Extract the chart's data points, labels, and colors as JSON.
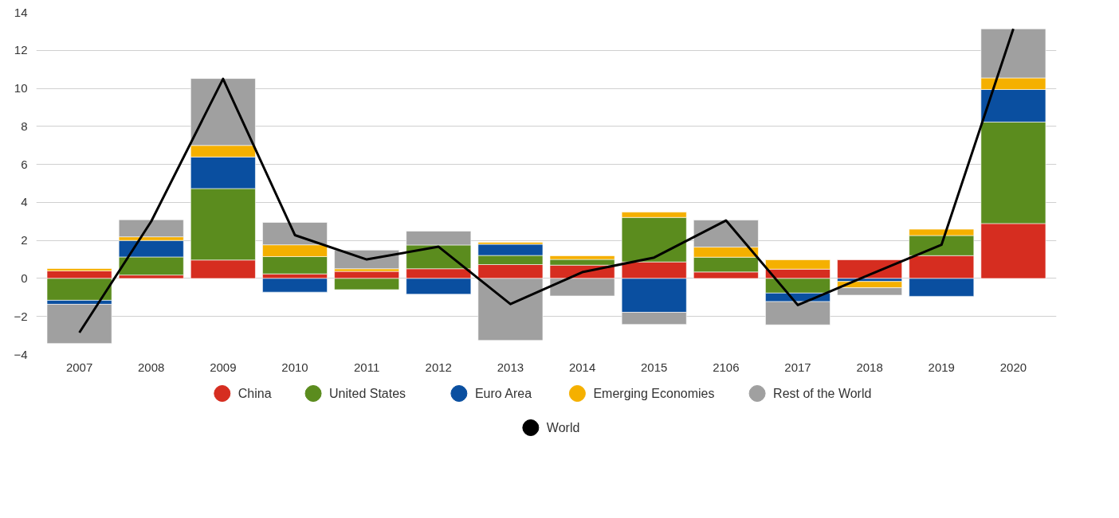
{
  "chart_data": {
    "type": "bar",
    "stacked": true,
    "categories": [
      "2007",
      "2008",
      "2009",
      "2010",
      "2011",
      "2012",
      "2013",
      "2014",
      "2015",
      "2106",
      "2017",
      "2018",
      "2019",
      "2020"
    ],
    "series": [
      {
        "name": "China",
        "color": "#d62d20",
        "values": [
          0.4,
          0.18,
          0.97,
          0.24,
          0.37,
          0.51,
          0.73,
          0.7,
          0.87,
          0.34,
          0.49,
          0.98,
          1.2,
          2.89
        ]
      },
      {
        "name": "United States",
        "color": "#5b8c1e",
        "values": [
          -1.15,
          0.95,
          3.76,
          0.91,
          -0.59,
          1.25,
          0.48,
          0.3,
          2.34,
          0.78,
          -0.77,
          null,
          1.06,
          5.34
        ]
      },
      {
        "name": "Euro Area",
        "color": "#0a4fa0",
        "values": [
          -0.21,
          0.87,
          1.66,
          -0.72,
          null,
          -0.83,
          0.59,
          null,
          -1.78,
          null,
          -0.45,
          -0.16,
          -0.94,
          1.71
        ]
      },
      {
        "name": "Emerging Economies",
        "color": "#f5b000",
        "values": [
          0.12,
          0.19,
          0.61,
          0.62,
          0.14,
          null,
          0.1,
          0.19,
          0.28,
          0.53,
          0.49,
          -0.33,
          0.33,
          0.61
        ]
      },
      {
        "name": "Rest of the World",
        "color": "#a0a0a0",
        "values": [
          -2.06,
          0.9,
          3.52,
          1.18,
          0.98,
          0.73,
          -3.26,
          -0.92,
          -0.64,
          1.42,
          -1.22,
          -0.39,
          null,
          2.58
        ]
      },
      {
        "name": "World",
        "type": "line",
        "color": "#000000",
        "values": [
          -2.85,
          3.0,
          10.5,
          2.28,
          1.0,
          1.67,
          -1.35,
          0.33,
          1.1,
          3.05,
          -1.4,
          0.2,
          1.77,
          13.13
        ]
      }
    ],
    "ylim": [
      -4,
      14
    ],
    "yticks": [
      -4,
      -2,
      0,
      2,
      4,
      6,
      8,
      10,
      12,
      14
    ],
    "grid": "y",
    "legend": "bottom"
  }
}
